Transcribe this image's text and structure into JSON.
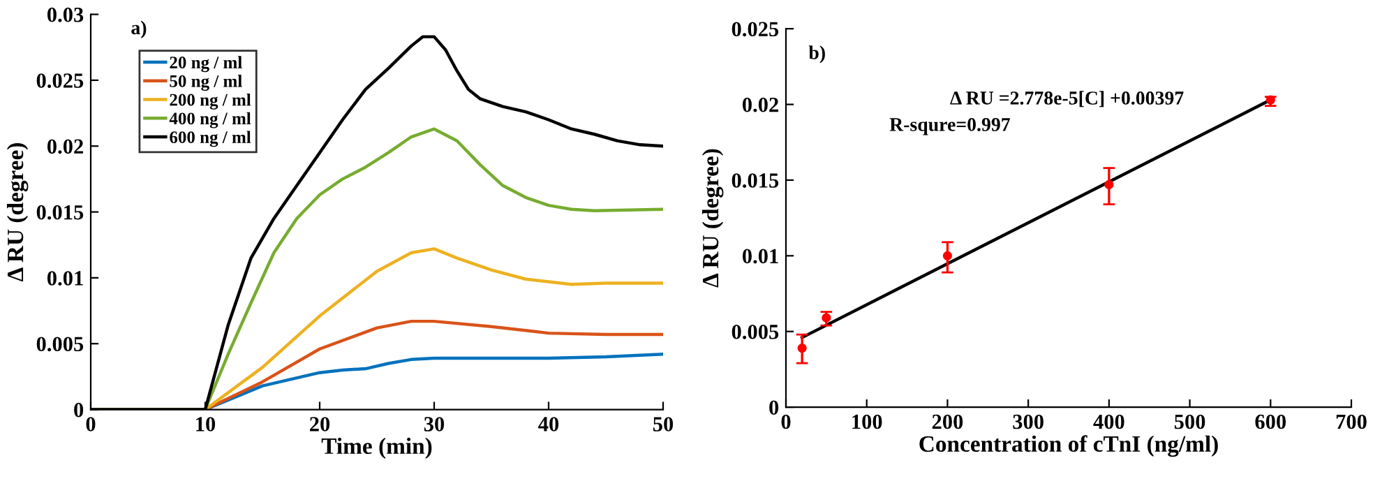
{
  "chart_data": [
    {
      "type": "line",
      "xlabel": "Time (min)",
      "ylabel": "Δ RU (degree)",
      "annotations": [
        "a)"
      ],
      "xlim": [
        0,
        50
      ],
      "ylim": [
        0,
        0.03
      ],
      "xticks": [
        0,
        10,
        20,
        30,
        40,
        50
      ],
      "yticks": [
        0,
        0.005,
        0.01,
        0.015,
        0.02,
        0.025,
        0.03
      ],
      "legend": "top left",
      "grid": false,
      "series": [
        {
          "name": "20 ng / ml",
          "color": "#0072bd",
          "x": [
            0,
            10,
            15,
            20,
            22,
            24,
            26,
            28,
            30,
            35,
            40,
            45,
            50
          ],
          "values": [
            0,
            0,
            0.0018,
            0.0028,
            0.003,
            0.0031,
            0.0035,
            0.0038,
            0.0039,
            0.0039,
            0.0039,
            0.004,
            0.0042
          ]
        },
        {
          "name": "50 ng / ml",
          "color": "#d95319",
          "x": [
            0,
            10,
            15,
            20,
            25,
            28,
            30,
            35,
            40,
            45,
            50
          ],
          "values": [
            0,
            0,
            0.0021,
            0.0046,
            0.0062,
            0.0067,
            0.0067,
            0.0063,
            0.0058,
            0.0057,
            0.0057
          ]
        },
        {
          "name": "200 ng / ml",
          "color": "#edb120",
          "x": [
            0,
            10,
            15,
            20,
            25,
            28,
            30,
            32,
            35,
            38,
            40,
            42,
            45,
            50
          ],
          "values": [
            0,
            0,
            0.0032,
            0.0071,
            0.0105,
            0.0119,
            0.0122,
            0.0115,
            0.0106,
            0.0099,
            0.0097,
            0.0095,
            0.0096,
            0.0096
          ]
        },
        {
          "name": "400 ng / ml",
          "color": "#77ac30",
          "x": [
            0,
            10,
            12,
            14,
            16,
            18,
            20,
            22,
            24,
            26,
            28,
            30,
            32,
            34,
            36,
            38,
            40,
            42,
            44,
            50
          ],
          "values": [
            0,
            0,
            0.0042,
            0.0081,
            0.0119,
            0.0145,
            0.0163,
            0.0175,
            0.0184,
            0.0195,
            0.0207,
            0.0213,
            0.0204,
            0.0186,
            0.017,
            0.0161,
            0.0155,
            0.0152,
            0.0151,
            0.0152
          ]
        },
        {
          "name": "600 ng / ml",
          "color": "#000000",
          "x": [
            0,
            10,
            12,
            14,
            16,
            18,
            20,
            22,
            24,
            26,
            28,
            29,
            30,
            31,
            32,
            33,
            34,
            36,
            38,
            40,
            42,
            44,
            46,
            48,
            50
          ],
          "values": [
            0,
            0,
            0.0064,
            0.0115,
            0.0145,
            0.017,
            0.0195,
            0.022,
            0.0243,
            0.0259,
            0.0276,
            0.0283,
            0.0283,
            0.0273,
            0.0257,
            0.0243,
            0.0236,
            0.023,
            0.0226,
            0.022,
            0.0213,
            0.0209,
            0.0204,
            0.0201,
            0.02
          ]
        }
      ]
    },
    {
      "type": "scatter",
      "xlabel": "Concentration of cTnI (ng/ml)",
      "ylabel": "Δ RU (degree)",
      "annotations": [
        "b)",
        "Δ RU =2.778e-5[C] +0.00397",
        "R-squre=0.997"
      ],
      "xlim": [
        0,
        700
      ],
      "ylim": [
        0,
        0.025
      ],
      "xticks": [
        0,
        100,
        200,
        300,
        400,
        500,
        600,
        700
      ],
      "yticks": [
        0,
        0.005,
        0.01,
        0.015,
        0.02,
        0.025
      ],
      "grid": false,
      "series": [
        {
          "type": "scatter",
          "marker": "circle",
          "color": "#ff0000",
          "x": [
            20,
            50,
            200,
            400,
            600
          ],
          "values": [
            0.0039,
            0.0059,
            0.01,
            0.0147,
            0.0203
          ],
          "errors": [
            [
              0.0029,
              0.0048
            ],
            [
              0.0054,
              0.0063
            ],
            [
              0.0089,
              0.0109
            ],
            [
              0.0134,
              0.0158
            ],
            [
              0.0199,
              0.0205
            ]
          ]
        },
        {
          "type": "line",
          "color": "#000000",
          "x": [
            20,
            600
          ],
          "values": [
            0.0046,
            0.0203
          ]
        }
      ]
    }
  ]
}
